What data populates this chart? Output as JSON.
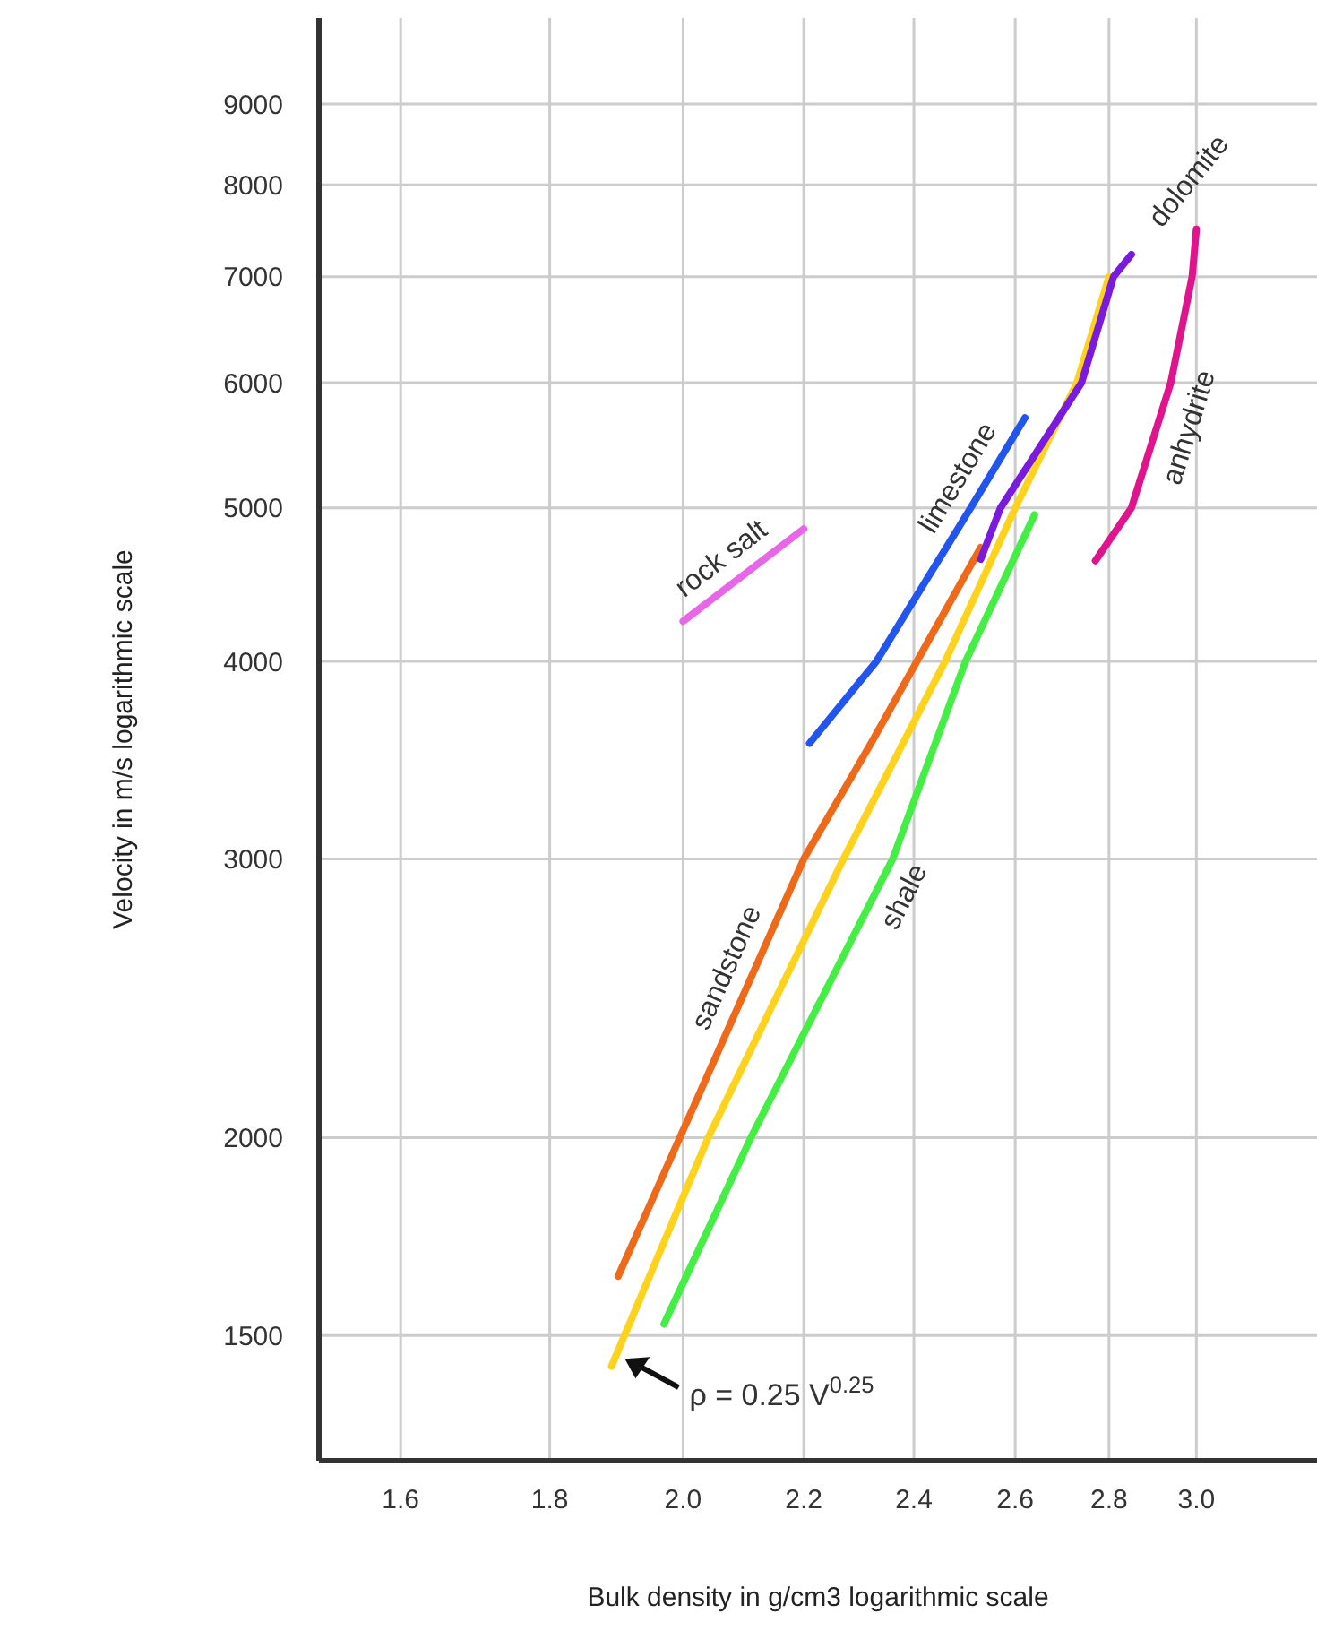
{
  "chart_data": {
    "type": "line",
    "xlabel": "Bulk density in g/cm3 logarithmic scale",
    "ylabel": "Velocity in m/s logarithmic scale",
    "log": "xy",
    "grid": true,
    "marker": "none",
    "xlim": [
      1.5,
      3.3
    ],
    "ylim": [
      1250,
      10200
    ],
    "xticks": [
      1.6,
      1.8,
      {
        "value": 2,
        "label": "2.0"
      },
      2.2,
      2.4,
      2.6,
      2.8,
      {
        "value": 3,
        "label": "3.0"
      }
    ],
    "yticks": [
      1500,
      2000,
      3000,
      4000,
      5000,
      6000,
      7000,
      8000,
      9000
    ],
    "series": [
      {
        "name": "rock salt",
        "color": "#e866e8",
        "x": [
          2.0,
          2.2
        ],
        "values": [
          4240,
          4850
        ]
      },
      {
        "name": "limestone",
        "color": "#2255ee",
        "x": [
          2.21,
          2.33,
          2.51,
          2.62
        ],
        "values": [
          3550,
          4000,
          5000,
          5700
        ]
      },
      {
        "name": "sandstone",
        "color": "#ee6a1a",
        "x": [
          1.9,
          2.2,
          2.32,
          2.53
        ],
        "values": [
          1635,
          3000,
          3550,
          4720
        ]
      },
      {
        "color": "#ffd21e",
        "x": [
          1.89,
          2.04,
          2.27,
          2.46,
          2.6,
          2.73,
          2.8
        ],
        "values": [
          1434,
          2000,
          3000,
          4000,
          5000,
          6000,
          7000
        ]
      },
      {
        "name": "shale",
        "color": "#44ee44",
        "x": [
          1.97,
          2.11,
          2.36,
          2.5,
          2.64
        ],
        "values": [
          1525,
          2000,
          3000,
          4000,
          4950
        ]
      },
      {
        "name": "dolomite",
        "color": "#7a1adc",
        "x": [
          2.53,
          2.57,
          2.74,
          2.81,
          2.85
        ],
        "values": [
          4640,
          5000,
          6000,
          7000,
          7230
        ]
      },
      {
        "name": "anhydrite",
        "color": "#e0148c",
        "x": [
          2.77,
          2.85,
          2.94,
          2.99,
          3.0
        ],
        "values": [
          4630,
          5000,
          6000,
          7000,
          7500
        ]
      }
    ],
    "annotations": [
      {
        "text": "ρ = 0.25 V$^{0.25}$",
        "x": 1.91,
        "y": 1450
      }
    ]
  }
}
